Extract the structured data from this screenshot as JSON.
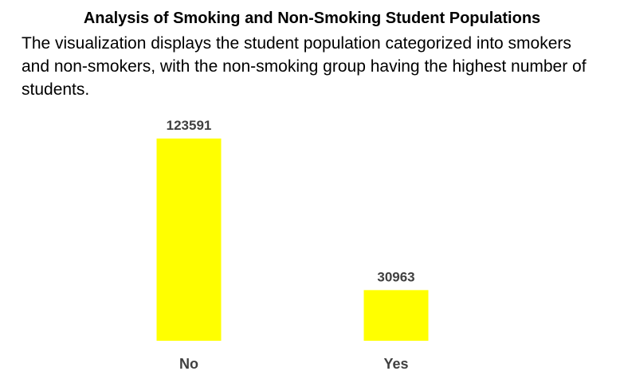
{
  "description": "The visualization displays the student population categorized into smokers and non-smokers, with the non-smoking group having the highest number of students.",
  "chart_data": {
    "type": "bar",
    "title": "Analysis of Smoking and Non-Smoking Student Populations",
    "categories": [
      "No",
      "Yes"
    ],
    "values": [
      123591,
      30963
    ],
    "data_labels": [
      "123591",
      "30963"
    ],
    "xlabel": "",
    "ylabel": "",
    "ylim": [
      0,
      123591
    ],
    "grid": false,
    "legend": "none",
    "bar_color": "#FFFF00",
    "label_color": "#404040"
  }
}
